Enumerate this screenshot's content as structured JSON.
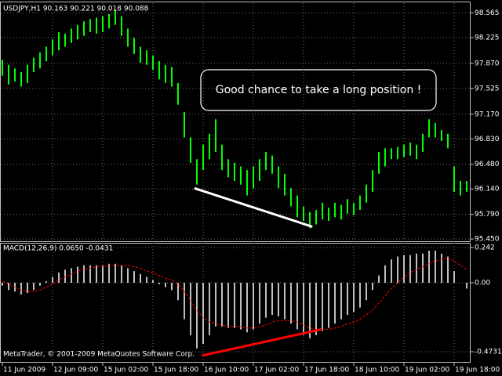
{
  "chart_data": [
    {
      "type": "hilo",
      "title": "USDJPY,H1  90.163 90.221 90.018 90.088",
      "color": "#00ff00",
      "xlim": [
        0,
        74
      ],
      "high": [
        97.92,
        97.85,
        97.8,
        97.75,
        97.85,
        97.95,
        98.02,
        98.1,
        98.2,
        98.3,
        98.28,
        98.35,
        98.4,
        98.45,
        98.48,
        98.5,
        98.52,
        98.55,
        98.6,
        98.52,
        98.35,
        98.22,
        98.1,
        98.05,
        97.98,
        97.9,
        97.85,
        97.82,
        97.6,
        97.2,
        96.85,
        96.55,
        96.75,
        96.9,
        97.1,
        96.75,
        96.55,
        96.5,
        96.45,
        96.4,
        96.45,
        96.55,
        96.65,
        96.6,
        96.45,
        96.35,
        96.15,
        96.05,
        95.9,
        95.82,
        95.85,
        95.95,
        95.88,
        95.95,
        95.92,
        96.0,
        95.95,
        96.05,
        96.2,
        96.4,
        96.65,
        96.7,
        96.7,
        96.72,
        96.75,
        96.78,
        96.75,
        96.9,
        97.1,
        97.05,
        96.95,
        96.9,
        96.45,
        96.25,
        96.25
      ],
      "low": [
        97.7,
        97.58,
        97.62,
        97.55,
        97.6,
        97.75,
        97.8,
        97.9,
        97.98,
        98.05,
        98.1,
        98.15,
        98.2,
        98.25,
        98.3,
        98.28,
        98.3,
        98.35,
        98.4,
        98.25,
        98.1,
        98.0,
        97.88,
        97.85,
        97.78,
        97.65,
        97.6,
        97.55,
        97.3,
        96.85,
        96.5,
        96.2,
        96.4,
        96.55,
        96.65,
        96.4,
        96.3,
        96.25,
        96.2,
        96.05,
        96.15,
        96.25,
        96.4,
        96.35,
        96.15,
        96.05,
        95.9,
        95.75,
        95.7,
        95.6,
        95.65,
        95.72,
        95.7,
        95.75,
        95.72,
        95.8,
        95.78,
        95.85,
        95.95,
        96.1,
        96.35,
        96.45,
        96.55,
        96.55,
        96.58,
        96.6,
        96.55,
        96.65,
        96.85,
        96.85,
        96.8,
        96.7,
        96.1,
        96.05,
        96.1
      ],
      "ylim": [
        95.43,
        98.7
      ],
      "yticks": [
        98.565,
        98.225,
        {
          "value": 97.87,
          "label": "97.870"
        },
        97.525,
        {
          "value": 97.17,
          "label": "97.170"
        },
        {
          "value": 96.83,
          "label": "96.830"
        },
        {
          "value": 96.48,
          "label": "96.480"
        },
        {
          "value": 96.14,
          "label": "96.140"
        },
        {
          "value": 95.79,
          "label": "95.790"
        },
        {
          "value": 95.45,
          "label": "95.450"
        }
      ],
      "grid": true,
      "trendline": {
        "x": [
          30.6,
          49.4
        ],
        "y": [
          96.15,
          95.62
        ],
        "color": "#ffffff"
      },
      "callout": "Good chance to take a long position !"
    },
    {
      "type": "macd",
      "title": "MACD(12,26,9) 0.0650 -0.0431",
      "xlim": [
        0,
        74
      ],
      "series": [
        {
          "color": "#c0c0c0",
          "values": [
            -0.02,
            -0.05,
            -0.06,
            -0.08,
            -0.07,
            -0.05,
            -0.02,
            0.01,
            0.04,
            0.07,
            0.09,
            0.1,
            0.11,
            0.12,
            0.12,
            0.12,
            0.12,
            0.13,
            0.13,
            0.12,
            0.1,
            0.08,
            0.06,
            0.04,
            0.02,
            -0.01,
            -0.03,
            -0.05,
            -0.12,
            -0.25,
            -0.36,
            -0.45,
            -0.42,
            -0.36,
            -0.3,
            -0.3,
            -0.31,
            -0.31,
            -0.32,
            -0.34,
            -0.32,
            -0.28,
            -0.24,
            -0.22,
            -0.23,
            -0.25,
            -0.28,
            -0.32,
            -0.36,
            -0.38,
            -0.36,
            -0.33,
            -0.31,
            -0.28,
            -0.25,
            -0.22,
            -0.2,
            -0.17,
            -0.12,
            -0.05,
            0.05,
            0.12,
            0.16,
            0.18,
            0.19,
            0.19,
            0.2,
            0.2,
            0.22,
            0.22,
            0.2,
            0.18,
            0.08,
            0.0,
            -0.04
          ]
        },
        {
          "color": "#ff0000",
          "values": [
            0.01,
            -0.01,
            -0.03,
            -0.05,
            -0.06,
            -0.06,
            -0.05,
            -0.03,
            -0.01,
            0.02,
            0.04,
            0.06,
            0.08,
            0.09,
            0.1,
            0.11,
            0.11,
            0.12,
            0.12,
            0.12,
            0.12,
            0.11,
            0.1,
            0.08,
            0.07,
            0.05,
            0.03,
            0.02,
            -0.01,
            -0.06,
            -0.12,
            -0.19,
            -0.24,
            -0.27,
            -0.28,
            -0.29,
            -0.3,
            -0.3,
            -0.3,
            -0.31,
            -0.31,
            -0.3,
            -0.29,
            -0.27,
            -0.26,
            -0.26,
            -0.26,
            -0.27,
            -0.29,
            -0.31,
            -0.32,
            -0.32,
            -0.32,
            -0.31,
            -0.3,
            -0.28,
            -0.27,
            -0.25,
            -0.22,
            -0.19,
            -0.14,
            -0.09,
            -0.04,
            0.0,
            0.04,
            0.07,
            0.09,
            0.11,
            0.13,
            0.15,
            0.16,
            0.17,
            0.15,
            0.12,
            0.09
          ]
        }
      ],
      "ylim": [
        -0.543,
        0.274
      ],
      "yticks": [
        0.242,
        {
          "value": 0,
          "label": "0.00"
        },
        -0.4731
      ],
      "grid": true,
      "trendline": {
        "x": [
          31.8,
          50.8
        ],
        "y": [
          -0.5,
          -0.32
        ],
        "color": "#ff0000"
      },
      "xticks": [
        {
          "value": 0,
          "label": "11 Jun 2009"
        },
        {
          "value": 8,
          "label": "12 Jun 09:00"
        },
        {
          "value": 16,
          "label": "15 Jun 02:00"
        },
        {
          "value": 24,
          "label": "15 Jun 18:00"
        },
        {
          "value": 32,
          "label": "16 Jun 10:00"
        },
        {
          "value": 40,
          "label": "17 Jun 02:00"
        },
        {
          "value": 48,
          "label": "17 Jun 18:00"
        },
        {
          "value": 56,
          "label": "18 Jun 10:00"
        },
        {
          "value": 64,
          "label": "19 Jun 02:00"
        },
        {
          "value": 72,
          "label": "19 Jun 18:00"
        }
      ],
      "footnote": "MetaTrader, © 2001-2009 MetaQuotes Software Corp."
    }
  ]
}
